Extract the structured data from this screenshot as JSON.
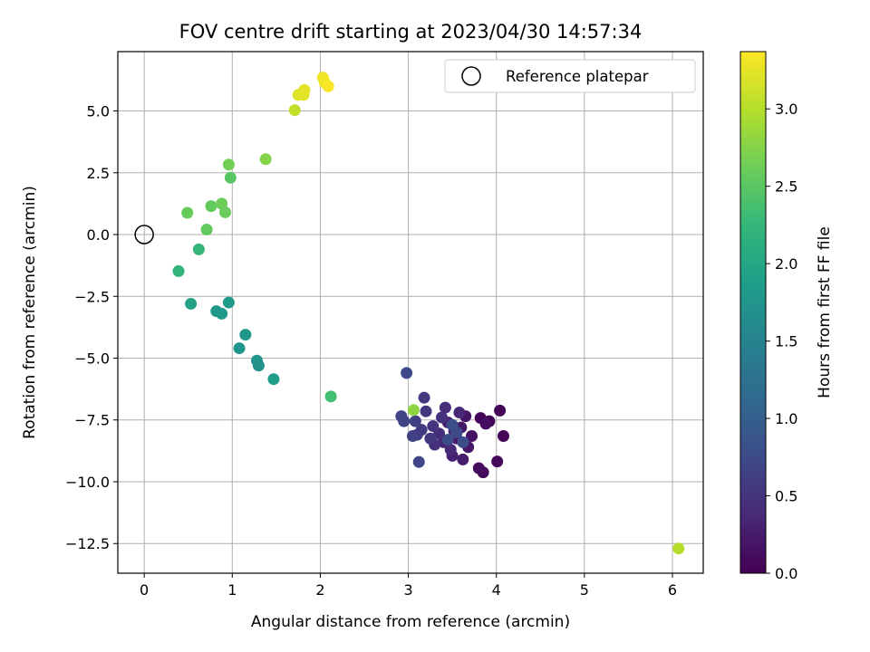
{
  "chart_data": {
    "type": "scatter",
    "title": "FOV centre drift starting at 2023/04/30 14:57:34",
    "xlabel": "Angular distance from reference (arcmin)",
    "ylabel": "Rotation from reference (arcmin)",
    "xlim": [
      -0.3,
      6.35
    ],
    "ylim": [
      -13.7,
      7.4
    ],
    "xticks": [
      0,
      1,
      2,
      3,
      4,
      5,
      6
    ],
    "xtick_labels": [
      "0",
      "1",
      "2",
      "3",
      "4",
      "5",
      "6"
    ],
    "yticks": [
      5.0,
      2.5,
      0.0,
      -2.5,
      -5.0,
      -7.5,
      -10.0,
      -12.5
    ],
    "ytick_labels": [
      "5.0",
      "2.5",
      "0.0",
      "−2.5",
      "−5.0",
      "−7.5",
      "−10.0",
      "−12.5"
    ],
    "grid": true,
    "colormap": "viridis",
    "colorbar": {
      "label": "Hours from first FF file",
      "range": [
        0.0,
        3.37
      ],
      "ticks": [
        0.0,
        0.5,
        1.0,
        1.5,
        2.0,
        2.5,
        3.0
      ],
      "tick_labels": [
        "0.0",
        "0.5",
        "1.0",
        "1.5",
        "2.0",
        "2.5",
        "3.0"
      ]
    },
    "legend": {
      "position": "top-right",
      "entries": [
        "Reference platepar"
      ]
    },
    "reference_point": {
      "x": 0.0,
      "y": 0.0
    },
    "points": [
      {
        "x": 3.82,
        "y": -7.42,
        "h": 0.02
      },
      {
        "x": 3.92,
        "y": -7.55,
        "h": 0.04
      },
      {
        "x": 4.04,
        "y": -7.12,
        "h": 0.05
      },
      {
        "x": 4.08,
        "y": -8.15,
        "h": 0.06
      },
      {
        "x": 4.01,
        "y": -9.18,
        "h": 0.07
      },
      {
        "x": 3.85,
        "y": -9.62,
        "h": 0.08
      },
      {
        "x": 3.8,
        "y": -9.45,
        "h": 0.1
      },
      {
        "x": 3.88,
        "y": -7.65,
        "h": 0.12
      },
      {
        "x": 3.72,
        "y": -8.15,
        "h": 0.16
      },
      {
        "x": 3.65,
        "y": -7.35,
        "h": 0.18
      },
      {
        "x": 3.6,
        "y": -7.8,
        "h": 0.2
      },
      {
        "x": 3.68,
        "y": -8.6,
        "h": 0.22
      },
      {
        "x": 3.55,
        "y": -8.25,
        "h": 0.25
      },
      {
        "x": 3.62,
        "y": -9.1,
        "h": 0.27
      },
      {
        "x": 3.5,
        "y": -8.95,
        "h": 0.3
      },
      {
        "x": 3.45,
        "y": -7.6,
        "h": 0.32
      },
      {
        "x": 3.52,
        "y": -7.95,
        "h": 0.34
      },
      {
        "x": 3.4,
        "y": -8.4,
        "h": 0.36
      },
      {
        "x": 3.58,
        "y": -7.2,
        "h": 0.38
      },
      {
        "x": 3.48,
        "y": -8.7,
        "h": 0.4
      },
      {
        "x": 3.42,
        "y": -7.0,
        "h": 0.42
      },
      {
        "x": 3.35,
        "y": -8.05,
        "h": 0.44
      },
      {
        "x": 3.3,
        "y": -8.5,
        "h": 0.46
      },
      {
        "x": 3.38,
        "y": -7.4,
        "h": 0.48
      },
      {
        "x": 3.28,
        "y": -7.75,
        "h": 0.5
      },
      {
        "x": 3.25,
        "y": -8.25,
        "h": 0.52
      },
      {
        "x": 3.2,
        "y": -7.15,
        "h": 0.54
      },
      {
        "x": 3.18,
        "y": -6.6,
        "h": 0.56
      },
      {
        "x": 3.15,
        "y": -7.9,
        "h": 0.58
      },
      {
        "x": 3.1,
        "y": -8.1,
        "h": 0.6
      },
      {
        "x": 3.08,
        "y": -7.55,
        "h": 0.62
      },
      {
        "x": 3.05,
        "y": -8.15,
        "h": 0.64
      },
      {
        "x": 2.95,
        "y": -7.55,
        "h": 0.66
      },
      {
        "x": 2.92,
        "y": -7.35,
        "h": 0.68
      },
      {
        "x": 3.12,
        "y": -9.2,
        "h": 0.7
      },
      {
        "x": 2.98,
        "y": -5.6,
        "h": 0.72
      },
      {
        "x": 3.55,
        "y": -8.0,
        "h": 0.74
      },
      {
        "x": 3.45,
        "y": -8.3,
        "h": 0.76
      },
      {
        "x": 3.62,
        "y": -8.4,
        "h": 0.78
      },
      {
        "x": 3.5,
        "y": -7.7,
        "h": 0.8
      },
      {
        "x": 0.96,
        "y": -2.75,
        "h": 1.85
      },
      {
        "x": 0.88,
        "y": -3.2,
        "h": 1.82
      },
      {
        "x": 0.82,
        "y": -3.1,
        "h": 1.8
      },
      {
        "x": 1.15,
        "y": -4.05,
        "h": 1.78
      },
      {
        "x": 1.08,
        "y": -4.6,
        "h": 1.76
      },
      {
        "x": 1.28,
        "y": -5.1,
        "h": 1.74
      },
      {
        "x": 1.3,
        "y": -5.3,
        "h": 1.72
      },
      {
        "x": 1.47,
        "y": -5.85,
        "h": 1.9
      },
      {
        "x": 0.53,
        "y": -2.8,
        "h": 1.95
      },
      {
        "x": 0.39,
        "y": -1.48,
        "h": 2.2
      },
      {
        "x": 0.62,
        "y": -0.6,
        "h": 2.25
      },
      {
        "x": 0.71,
        "y": 0.2,
        "h": 2.55
      },
      {
        "x": 0.49,
        "y": 0.88,
        "h": 2.58
      },
      {
        "x": 0.76,
        "y": 1.15,
        "h": 2.56
      },
      {
        "x": 0.92,
        "y": 0.9,
        "h": 2.6
      },
      {
        "x": 0.88,
        "y": 1.25,
        "h": 2.62
      },
      {
        "x": 0.98,
        "y": 2.3,
        "h": 2.5
      },
      {
        "x": 0.96,
        "y": 2.83,
        "h": 2.65
      },
      {
        "x": 1.38,
        "y": 3.05,
        "h": 2.75
      },
      {
        "x": 2.12,
        "y": -6.55,
        "h": 2.35
      },
      {
        "x": 3.06,
        "y": -7.1,
        "h": 2.8
      },
      {
        "x": 1.71,
        "y": 5.03,
        "h": 3.05
      },
      {
        "x": 1.75,
        "y": 5.65,
        "h": 3.2
      },
      {
        "x": 1.81,
        "y": 5.65,
        "h": 3.22
      },
      {
        "x": 1.82,
        "y": 5.85,
        "h": 3.25
      },
      {
        "x": 2.03,
        "y": 6.35,
        "h": 3.3
      },
      {
        "x": 2.05,
        "y": 6.15,
        "h": 3.32
      },
      {
        "x": 2.09,
        "y": 6.0,
        "h": 3.35
      },
      {
        "x": 6.07,
        "y": -12.7,
        "h": 3.0
      }
    ]
  }
}
